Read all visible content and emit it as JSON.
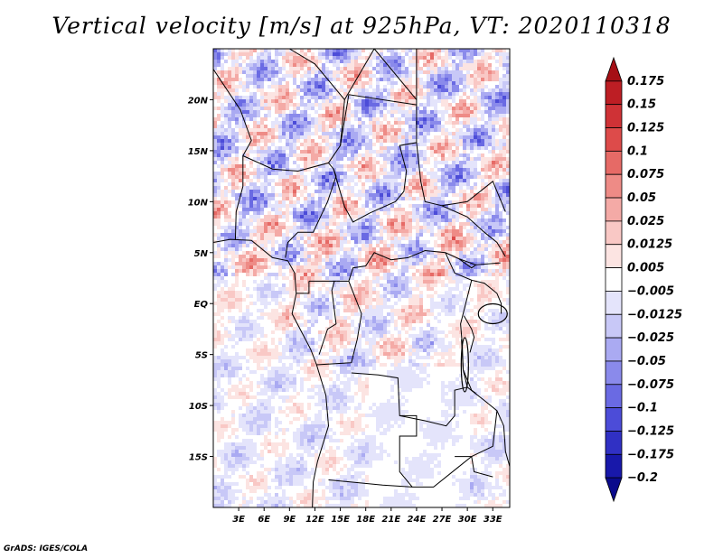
{
  "title": "Vertical velocity [m/s] at 925hPa, VT: 2020110318",
  "footer": "GrADS: IGES/COLA",
  "map": {
    "projection": "lat-lon",
    "lon_range": [
      0,
      35
    ],
    "lat_range": [
      -20,
      25
    ],
    "lat_ticks": [
      {
        "lat": 20,
        "label": "20N"
      },
      {
        "lat": 15,
        "label": "15N"
      },
      {
        "lat": 10,
        "label": "10N"
      },
      {
        "lat": 5,
        "label": "5N"
      },
      {
        "lat": 0,
        "label": "EQ"
      },
      {
        "lat": -5,
        "label": "5S"
      },
      {
        "lat": -10,
        "label": "10S"
      },
      {
        "lat": -15,
        "label": "15S"
      }
    ],
    "lon_ticks": [
      {
        "lon": 3,
        "label": "3E"
      },
      {
        "lon": 6,
        "label": "6E"
      },
      {
        "lon": 9,
        "label": "9E"
      },
      {
        "lon": 12,
        "label": "12E"
      },
      {
        "lon": 15,
        "label": "15E"
      },
      {
        "lon": 18,
        "label": "18E"
      },
      {
        "lon": 21,
        "label": "21E"
      },
      {
        "lon": 24,
        "label": "24E"
      },
      {
        "lon": 27,
        "label": "27E"
      },
      {
        "lon": 30,
        "label": "30E"
      },
      {
        "lon": 33,
        "label": "33E"
      }
    ]
  },
  "colorbar": {
    "labels": [
      "0.175",
      "0.15",
      "0.125",
      "0.1",
      "0.075",
      "0.05",
      "0.025",
      "0.0125",
      "0.005",
      "−0.005",
      "−0.0125",
      "−0.025",
      "−0.05",
      "−0.075",
      "−0.1",
      "−0.125",
      "−0.175",
      "−0.2"
    ],
    "colors": [
      "#a50f15",
      "#bd1e24",
      "#cf3236",
      "#dd4b4a",
      "#e66a66",
      "#ee8b86",
      "#f4aaa6",
      "#f9c8c5",
      "#fce4e2",
      "#ffffff",
      "#e4e4fb",
      "#c8c8f7",
      "#aaaaf2",
      "#8a8aeb",
      "#6a6ae3",
      "#4c4cd8",
      "#3030c4",
      "#1818aa",
      "#0a0a8c"
    ]
  }
}
